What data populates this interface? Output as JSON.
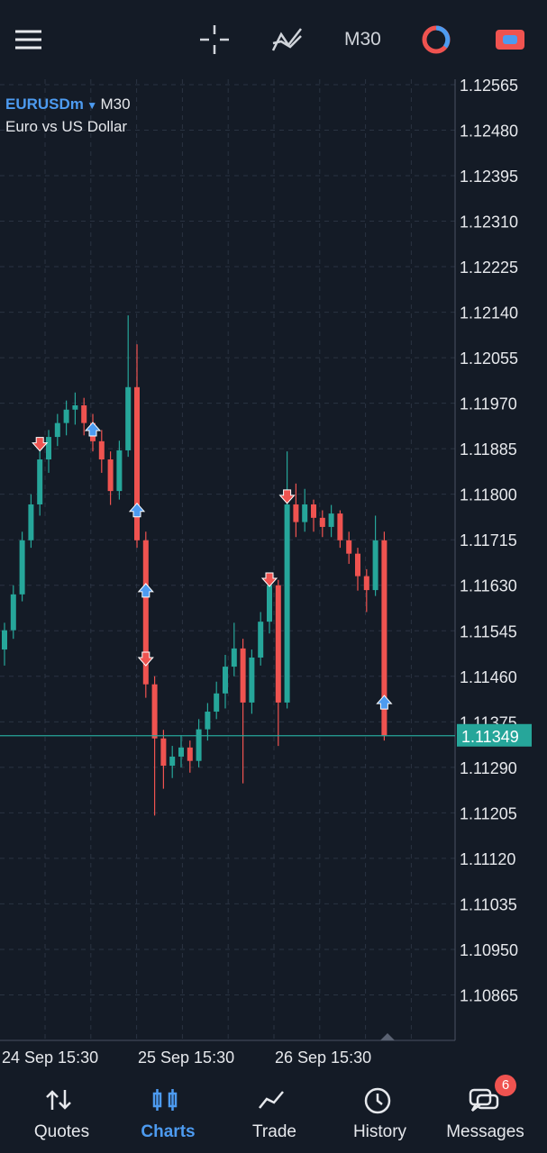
{
  "toolbar": {
    "timeframe": "M30"
  },
  "chart_data": {
    "type": "candlestick",
    "symbol": "EURUSDm",
    "timeframe": "M30",
    "description": "Euro vs US Dollar",
    "up_color": "#26a69a",
    "down_color": "#ef5350",
    "ylim": [
      1.1078,
      1.12575
    ],
    "yticks": [
      {
        "value": 1.12565,
        "label": "1.12565"
      },
      {
        "value": 1.1248,
        "label": "1.12480"
      },
      {
        "value": 1.12395,
        "label": "1.12395"
      },
      {
        "value": 1.1231,
        "label": "1.12310"
      },
      {
        "value": 1.12225,
        "label": "1.12225"
      },
      {
        "value": 1.1214,
        "label": "1.12140"
      },
      {
        "value": 1.12055,
        "label": "1.12055"
      },
      {
        "value": 1.1197,
        "label": "1.11970"
      },
      {
        "value": 1.11885,
        "label": "1.11885"
      },
      {
        "value": 1.118,
        "label": "1.11800"
      },
      {
        "value": 1.11715,
        "label": "1.11715"
      },
      {
        "value": 1.1163,
        "label": "1.11630"
      },
      {
        "value": 1.11545,
        "label": "1.11545"
      },
      {
        "value": 1.1146,
        "label": "1.11460"
      },
      {
        "value": 1.11375,
        "label": "1.11375"
      },
      {
        "value": 1.1129,
        "label": "1.11290"
      },
      {
        "value": 1.11205,
        "label": "1.11205"
      },
      {
        "value": 1.1112,
        "label": "1.11120"
      },
      {
        "value": 1.11035,
        "label": "1.11035"
      },
      {
        "value": 1.1095,
        "label": "1.10950"
      },
      {
        "value": 1.10865,
        "label": "1.10865"
      }
    ],
    "grid": true,
    "time_labels": [
      "24 Sep 15:30",
      "25 Sep 15:30",
      "26 Sep 15:30"
    ],
    "candles": [
      [
        1.1151,
        1.1156,
        1.1148,
        1.11546
      ],
      [
        1.11546,
        1.1163,
        1.1153,
        1.11613
      ],
      [
        1.11613,
        1.1173,
        1.116,
        1.11714
      ],
      [
        1.11714,
        1.118,
        1.117,
        1.11781
      ],
      [
        1.11781,
        1.1188,
        1.1176,
        1.11865
      ],
      [
        1.11865,
        1.1192,
        1.1184,
        1.11907
      ],
      [
        1.11907,
        1.1195,
        1.1189,
        1.11933
      ],
      [
        1.11933,
        1.11975,
        1.1191,
        1.11958
      ],
      [
        1.11958,
        1.1199,
        1.1193,
        1.11966
      ],
      [
        1.11966,
        1.1198,
        1.1191,
        1.11933
      ],
      [
        1.11933,
        1.1195,
        1.1188,
        1.11899
      ],
      [
        1.11899,
        1.1192,
        1.1184,
        1.11865
      ],
      [
        1.11865,
        1.1188,
        1.1178,
        1.11806
      ],
      [
        1.11806,
        1.119,
        1.1179,
        1.11882
      ],
      [
        1.11882,
        1.12134,
        1.1187,
        1.12
      ],
      [
        1.12,
        1.1208,
        1.117,
        1.11714
      ],
      [
        1.11714,
        1.1173,
        1.1142,
        1.11445
      ],
      [
        1.11445,
        1.1146,
        1.112,
        1.11344
      ],
      [
        1.11344,
        1.1136,
        1.1125,
        1.11293
      ],
      [
        1.11293,
        1.1133,
        1.1127,
        1.1131
      ],
      [
        1.1131,
        1.1135,
        1.1129,
        1.11327
      ],
      [
        1.11327,
        1.1134,
        1.1128,
        1.11302
      ],
      [
        1.11302,
        1.1138,
        1.1129,
        1.11361
      ],
      [
        1.11361,
        1.1141,
        1.1134,
        1.11394
      ],
      [
        1.11394,
        1.1145,
        1.1138,
        1.11428
      ],
      [
        1.11428,
        1.115,
        1.114,
        1.11478
      ],
      [
        1.11478,
        1.1156,
        1.1146,
        1.11512
      ],
      [
        1.11512,
        1.1153,
        1.1126,
        1.11411
      ],
      [
        1.11411,
        1.1151,
        1.1139,
        1.11495
      ],
      [
        1.11495,
        1.1158,
        1.1148,
        1.11562
      ],
      [
        1.11562,
        1.1165,
        1.1154,
        1.1163
      ],
      [
        1.1163,
        1.1164,
        1.1133,
        1.11411
      ],
      [
        1.11411,
        1.1188,
        1.114,
        1.11781
      ],
      [
        1.11781,
        1.1182,
        1.1172,
        1.11748
      ],
      [
        1.11748,
        1.1181,
        1.1173,
        1.11781
      ],
      [
        1.11781,
        1.1179,
        1.1173,
        1.11756
      ],
      [
        1.11756,
        1.1177,
        1.1172,
        1.11739
      ],
      [
        1.11739,
        1.1178,
        1.1172,
        1.11764
      ],
      [
        1.11764,
        1.1177,
        1.117,
        1.11714
      ],
      [
        1.11714,
        1.1173,
        1.1167,
        1.11689
      ],
      [
        1.11689,
        1.117,
        1.1162,
        1.11647
      ],
      [
        1.11647,
        1.1166,
        1.1158,
        1.11621
      ],
      [
        1.11621,
        1.1176,
        1.1161,
        1.11714
      ],
      [
        1.11714,
        1.1173,
        1.1134,
        1.11349
      ]
    ],
    "trades": [
      {
        "side": "sell",
        "candle": 4,
        "price": 1.11896
      },
      {
        "side": "buy",
        "candle": 10,
        "price": 1.11919
      },
      {
        "side": "buy",
        "candle": 15,
        "price": 1.11768
      },
      {
        "side": "buy",
        "candle": 16,
        "price": 1.11618
      },
      {
        "side": "sell",
        "candle": 16,
        "price": 1.11495
      },
      {
        "side": "sell",
        "candle": 30,
        "price": 1.11643
      },
      {
        "side": "sell",
        "candle": 32,
        "price": 1.11798
      },
      {
        "side": "buy",
        "candle": 43,
        "price": 1.11409
      }
    ],
    "bid": {
      "value": 1.11349,
      "label": "1.11349"
    }
  },
  "nav": {
    "items": [
      "Quotes",
      "Charts",
      "Trade",
      "History",
      "Messages"
    ],
    "active": 1,
    "badge": 6
  }
}
